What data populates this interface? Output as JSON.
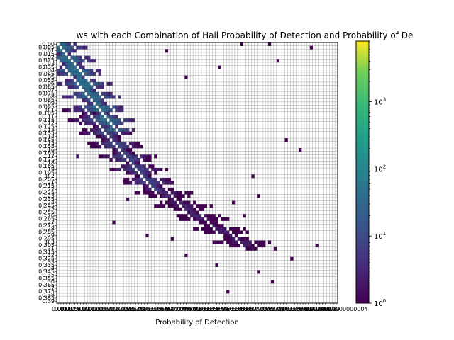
{
  "chart_data": {
    "type": "heatmap",
    "title": "ws with each Combination of Hail Probability of Detection and Probability of De",
    "xlabel": "Probability of Detection",
    "ylabel": "",
    "colorbar": {
      "scale": "log",
      "colormap": "viridis",
      "range": [
        1,
        8000
      ],
      "ticks": [
        {
          "base": "10",
          "exp": "0"
        },
        {
          "base": "10",
          "exp": "1"
        },
        {
          "base": "10",
          "exp": "2"
        },
        {
          "base": "10",
          "exp": "3"
        }
      ],
      "tick_values": [
        1,
        10,
        100,
        1000
      ]
    },
    "y_tick_labels": [
      "0.00",
      "0.005",
      "0.01",
      "0.015",
      "0.02",
      "0.025",
      "0.03",
      "0.035",
      "0.04",
      "0.045",
      "0.05",
      "0.055",
      "0.06",
      "0.065",
      "0.07",
      "0.075",
      "0.08",
      "0.085",
      "0.09",
      "0.095",
      "0.1",
      "0.105",
      "0.11",
      "0.115",
      "0.12",
      "0.125",
      "0.13",
      "0.135",
      "0.14",
      "0.145",
      "0.15",
      "0.155",
      "0.16",
      "0.165",
      "0.17",
      "0.175",
      "0.18",
      "0.185",
      "0.19",
      "0.195",
      "0.2",
      "0.205",
      "0.21",
      "0.215",
      "0.22",
      "0.225",
      "0.23",
      "0.235",
      "0.24",
      "0.245",
      "0.25",
      "0.255",
      "0.26",
      "0.265",
      "0.27",
      "0.275",
      "0.28",
      "0.285",
      "0.29",
      "0.295",
      "0.3",
      "0.305",
      "0.31",
      "0.315",
      "0.32",
      "0.325",
      "0.33",
      "0.335",
      "0.34",
      "0.345",
      "0.35",
      "0.355",
      "0.36",
      "0.365",
      "0.37",
      "0.375",
      "0.38",
      "0.385",
      "0.39"
    ],
    "x_tick_labels": [
      "0.00",
      "0.01",
      "0.02",
      "0.03",
      "0.04",
      "0.05",
      "0.06",
      "0.07",
      "0.08",
      "0.09",
      "0.1",
      "0.11",
      "0.12",
      "0.13",
      "0.14",
      "0.15",
      "0.16",
      "0.17",
      "0.18",
      "0.19",
      "0.2",
      "0.21",
      "0.22",
      "0.23",
      "0.24",
      "0.25",
      "0.26",
      "0.27",
      "0.28",
      "0.29",
      "0.3",
      "0.31",
      "0.32",
      "0.33",
      "0.34",
      "0.35",
      "0.36",
      "0.37",
      "0.38",
      "0.39",
      "0.4",
      "0.41",
      "0.42",
      "0.43",
      "0.44",
      "0.45",
      "0.46",
      "0.47",
      "0.48",
      "0.49",
      "0.5",
      "0.51",
      "0.52",
      "0.53",
      "0.54",
      "0.55",
      "0.56",
      "0.57",
      "0.58",
      "0.59",
      "0.6",
      "0.61",
      "0.62",
      "0.63",
      "0.64",
      "0.65",
      "0.66",
      "0.67",
      "0.68",
      "0.69",
      "0.7",
      "0.71",
      "0.72",
      "0.73",
      "0.74",
      "0.75",
      "0.76",
      "0.77",
      "0.78",
      "0.79",
      "0.8",
      "0.81",
      "0.82",
      "0.83",
      "0.84",
      "0.85",
      "0.86",
      "0.87",
      "0.88",
      "0.89",
      "0.9",
      "0.91",
      "0.92",
      "0.93",
      "0.94",
      "0.95",
      "0.96",
      "0.97",
      "0.98",
      "0.99",
      "1.0000000000000004"
    ],
    "grid": "on",
    "cells": {
      "description_note_removed": true,
      "diagonal_bands": [
        {
          "x_start": 0.0,
          "x_end": 0.2,
          "y_start": 0.0,
          "y_end": 0.13,
          "counts": [
            40,
            25,
            12,
            6,
            3
          ]
        },
        {
          "x_start": 0.1,
          "x_end": 0.35,
          "y_start": 0.1,
          "y_end": 0.22,
          "counts": [
            8,
            5,
            3,
            2,
            1
          ]
        },
        {
          "x_start": 0.3,
          "x_end": 0.5,
          "y_start": 0.2,
          "y_end": 0.26,
          "counts": [
            3,
            2,
            1,
            1,
            1
          ]
        },
        {
          "x_start": 0.5,
          "x_end": 0.7,
          "y_start": 0.26,
          "y_end": 0.31,
          "counts": [
            2,
            1,
            1
          ]
        }
      ],
      "scattered": [
        {
          "x": 0.07,
          "y": 0.17,
          "count": 2
        },
        {
          "x": 0.39,
          "y": 0.01,
          "count": 1
        },
        {
          "x": 0.46,
          "y": 0.05,
          "count": 1
        },
        {
          "x": 0.58,
          "y": 0.035,
          "count": 1
        },
        {
          "x": 0.66,
          "y": 0.0,
          "count": 1
        },
        {
          "x": 0.76,
          "y": 0.0,
          "count": 1
        },
        {
          "x": 0.79,
          "y": 0.025,
          "count": 1
        },
        {
          "x": 0.91,
          "y": 0.005,
          "count": 1
        },
        {
          "x": 0.82,
          "y": 0.145,
          "count": 1
        },
        {
          "x": 0.87,
          "y": 0.16,
          "count": 1
        },
        {
          "x": 0.7,
          "y": 0.2,
          "count": 1
        },
        {
          "x": 0.72,
          "y": 0.23,
          "count": 1
        },
        {
          "x": 0.63,
          "y": 0.24,
          "count": 1
        },
        {
          "x": 0.67,
          "y": 0.26,
          "count": 1
        },
        {
          "x": 0.25,
          "y": 0.235,
          "count": 1
        },
        {
          "x": 0.2,
          "y": 0.27,
          "count": 1
        },
        {
          "x": 0.32,
          "y": 0.29,
          "count": 1
        },
        {
          "x": 0.41,
          "y": 0.295,
          "count": 1
        },
        {
          "x": 0.78,
          "y": 0.31,
          "count": 1
        },
        {
          "x": 0.84,
          "y": 0.325,
          "count": 1
        },
        {
          "x": 0.57,
          "y": 0.335,
          "count": 1
        },
        {
          "x": 0.72,
          "y": 0.345,
          "count": 1
        },
        {
          "x": 0.77,
          "y": 0.36,
          "count": 1
        },
        {
          "x": 0.61,
          "y": 0.375,
          "count": 1
        },
        {
          "x": 0.93,
          "y": 0.305,
          "count": 1
        },
        {
          "x": 0.46,
          "y": 0.32,
          "count": 1
        }
      ]
    }
  }
}
